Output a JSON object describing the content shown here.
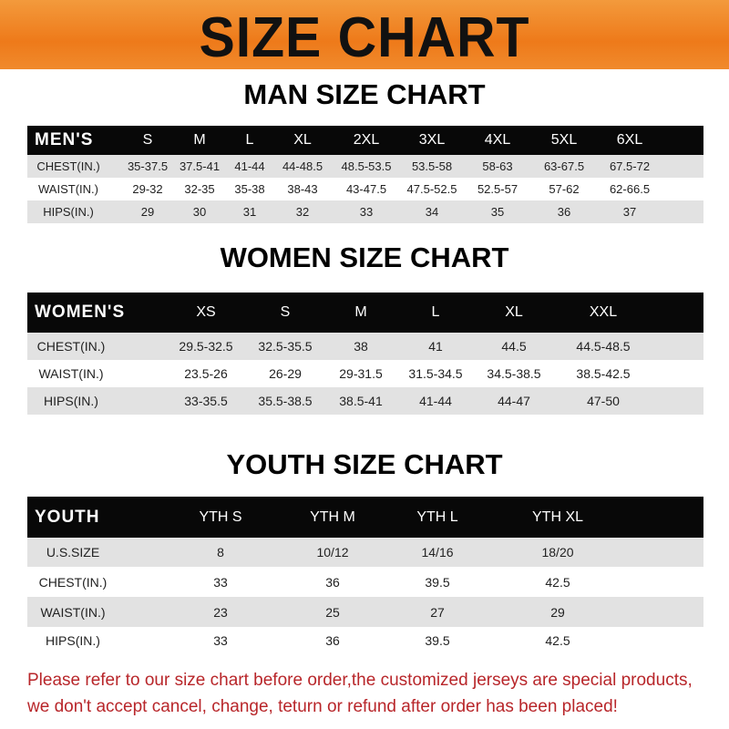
{
  "banner": {
    "title": "SIZE CHART",
    "color": "#ee7a1a"
  },
  "men": {
    "title": "MAN SIZE CHART",
    "header": [
      "MEN'S",
      "S",
      "M",
      "L",
      "XL",
      "2XL",
      "3XL",
      "4XL",
      "5XL",
      "6XL"
    ],
    "rows": [
      [
        "CHEST(IN.)",
        "35-37.5",
        "37.5-41",
        "41-44",
        "44-48.5",
        "48.5-53.5",
        "53.5-58",
        "58-63",
        "63-67.5",
        "67.5-72"
      ],
      [
        "WAIST(IN.)",
        "29-32",
        "32-35",
        "35-38",
        "38-43",
        "43-47.5",
        "47.5-52.5",
        "52.5-57",
        "57-62",
        "62-66.5"
      ],
      [
        "HIPS(IN.)",
        "29",
        "30",
        "31",
        "32",
        "33",
        "34",
        "35",
        "36",
        "37"
      ]
    ]
  },
  "women": {
    "title": "WOMEN SIZE CHART",
    "header": [
      "WOMEN'S",
      "XS",
      "S",
      "M",
      "L",
      "XL",
      "XXL"
    ],
    "rows": [
      [
        "CHEST(IN.)",
        "29.5-32.5",
        "32.5-35.5",
        "38",
        "41",
        "44.5",
        "44.5-48.5"
      ],
      [
        "WAIST(IN.)",
        "23.5-26",
        "26-29",
        "29-31.5",
        "31.5-34.5",
        "34.5-38.5",
        "38.5-42.5"
      ],
      [
        "HIPS(IN.)",
        "33-35.5",
        "35.5-38.5",
        "38.5-41",
        "41-44",
        "44-47",
        "47-50"
      ]
    ]
  },
  "youth": {
    "title": "YOUTH SIZE CHART",
    "header": [
      "YOUTH",
      "YTH S",
      "YTH M",
      "YTH L",
      "YTH XL"
    ],
    "rows": [
      [
        "U.S.SIZE",
        "8",
        "10/12",
        "14/16",
        "18/20"
      ],
      [
        "CHEST(IN.)",
        "33",
        "36",
        "39.5",
        "42.5"
      ],
      [
        "WAIST(IN.)",
        "23",
        "25",
        "27",
        "29"
      ],
      [
        "HIPS(IN.)",
        "33",
        "36",
        "39.5",
        "42.5"
      ]
    ]
  },
  "notice": {
    "line1": "Please refer to our size chart before order,the customized jerseys are special products,",
    "line2": "we don't accept cancel, change, teturn or refund after order has been placed!",
    "color": "#b8262a"
  }
}
